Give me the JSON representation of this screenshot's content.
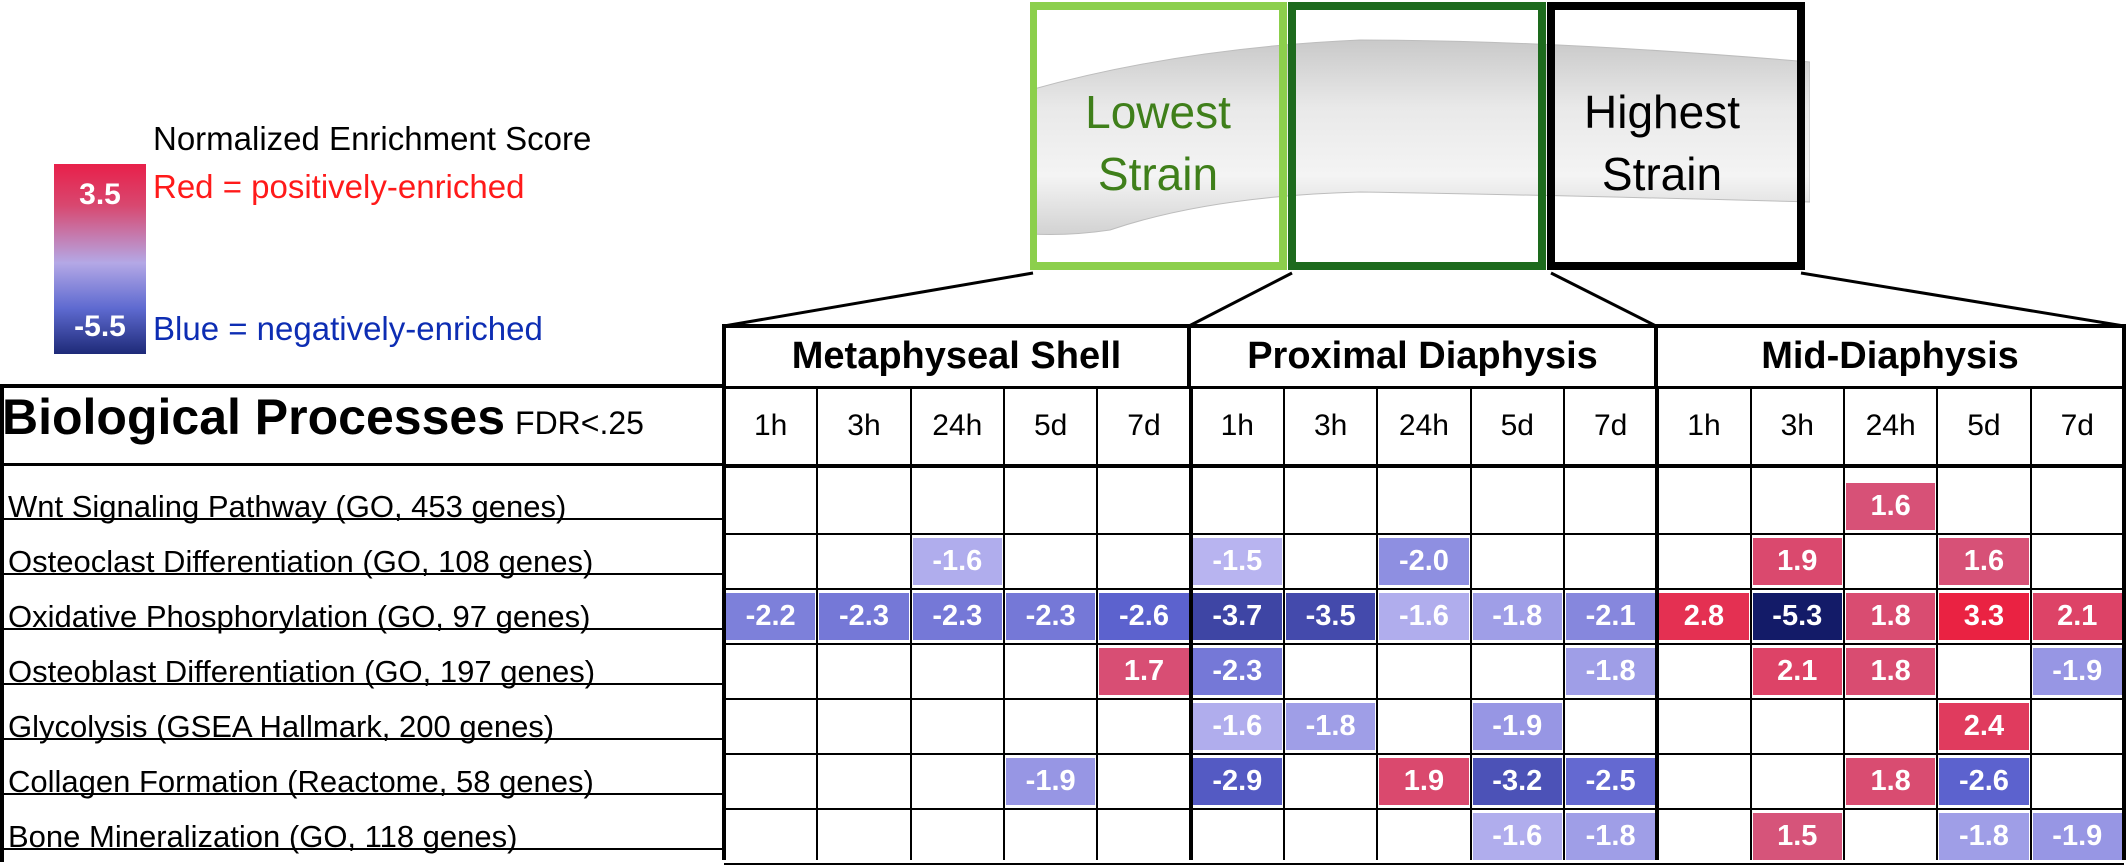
{
  "legend": {
    "title": "Normalized Enrichment Score",
    "max_label": "3.5",
    "min_label": "-5.5",
    "red_label": "Red = positively-enriched",
    "blue_label": "Blue = negatively-enriched",
    "colors": {
      "positive": "#e8204a",
      "mid": "#b4a8e6",
      "negative": "#1e2a78"
    }
  },
  "strain": {
    "lowest_line1": "Lowest",
    "lowest_line2": "Strain",
    "highest_line1": "Highest",
    "highest_line2": "Strain",
    "colors": {
      "lowest": "#8ccf4c",
      "middle": "#1d6a1d",
      "highest": "#000000",
      "lowest_text": "#3f7f1a"
    }
  },
  "table": {
    "title": "Biological Processes",
    "fdr_label": "FDR<.25"
  },
  "chart_data": {
    "type": "heatmap",
    "sections": [
      "Metaphyseal Shell",
      "Proximal Diaphysis",
      "Mid-Diaphysis"
    ],
    "timepoints": [
      "1h",
      "3h",
      "24h",
      "5d",
      "7d"
    ],
    "columns": [
      "Metaphyseal Shell 1h",
      "Metaphyseal Shell 3h",
      "Metaphyseal Shell 24h",
      "Metaphyseal Shell 5d",
      "Metaphyseal Shell 7d",
      "Proximal Diaphysis 1h",
      "Proximal Diaphysis 3h",
      "Proximal Diaphysis 24h",
      "Proximal Diaphysis 5d",
      "Proximal Diaphysis 7d",
      "Mid-Diaphysis 1h",
      "Mid-Diaphysis 3h",
      "Mid-Diaphysis 24h",
      "Mid-Diaphysis 5d",
      "Mid-Diaphysis 7d"
    ],
    "rows": [
      "Wnt Signaling Pathway (GO, 453 genes)",
      "Osteoclast Differentiation (GO, 108 genes)",
      "Oxidative Phosphorylation (GO, 97 genes)",
      "Osteoblast Differentiation (GO, 197 genes)",
      "Glycolysis (GSEA Hallmark, 200 genes)",
      "Collagen Formation (Reactome, 58 genes)",
      "Bone Mineralization (GO, 118 genes)"
    ],
    "values": [
      [
        null,
        null,
        null,
        null,
        null,
        null,
        null,
        null,
        null,
        null,
        null,
        null,
        1.6,
        null,
        null
      ],
      [
        null,
        null,
        -1.6,
        null,
        null,
        -1.5,
        null,
        -2.0,
        null,
        null,
        null,
        1.9,
        null,
        1.6,
        null
      ],
      [
        -2.2,
        -2.3,
        -2.3,
        -2.3,
        -2.6,
        -3.7,
        -3.5,
        -1.6,
        -1.8,
        -2.1,
        2.8,
        -5.3,
        1.8,
        3.3,
        2.1
      ],
      [
        null,
        null,
        null,
        null,
        1.7,
        -2.3,
        null,
        null,
        null,
        -1.8,
        null,
        2.1,
        1.8,
        null,
        -1.9
      ],
      [
        null,
        null,
        null,
        null,
        null,
        -1.6,
        -1.8,
        null,
        -1.9,
        null,
        null,
        null,
        null,
        2.4,
        null
      ],
      [
        null,
        null,
        null,
        -1.9,
        null,
        -2.9,
        null,
        1.9,
        -3.2,
        -2.5,
        null,
        null,
        1.8,
        -2.6,
        null
      ],
      [
        null,
        null,
        null,
        null,
        null,
        null,
        null,
        null,
        -1.6,
        -1.8,
        null,
        1.5,
        null,
        -1.8,
        -1.9
      ]
    ],
    "color_scale": {
      "min": -5.5,
      "max": 3.5
    }
  }
}
